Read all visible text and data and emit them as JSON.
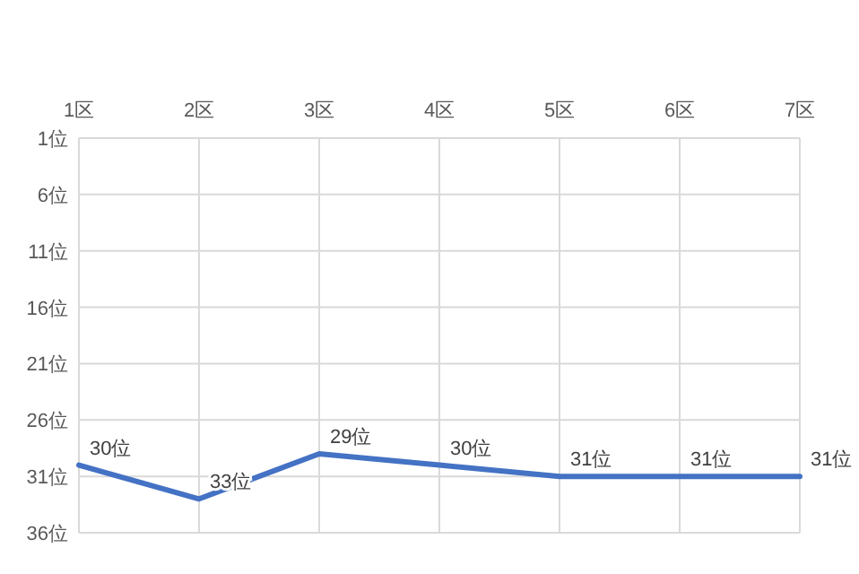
{
  "chart_data": {
    "type": "line",
    "categories": [
      "1区",
      "2区",
      "3区",
      "4区",
      "5区",
      "6区",
      "7区"
    ],
    "series": [
      {
        "color": "#4472c4",
        "values": [
          30,
          33,
          29,
          30,
          31,
          31,
          31
        ],
        "value_labels": [
          "30位",
          "33位",
          "29位",
          "30位",
          "31位",
          "31位",
          "31位"
        ]
      }
    ],
    "ylim": [
      36,
      1
    ],
    "yticks": [
      {
        "value": 1,
        "label": "1位"
      },
      {
        "value": 6,
        "label": "6位"
      },
      {
        "value": 11,
        "label": "11位"
      },
      {
        "value": 16,
        "label": "16位"
      },
      {
        "value": 21,
        "label": "21位"
      },
      {
        "value": 26,
        "label": "26位"
      },
      {
        "value": 31,
        "label": "31位"
      },
      {
        "value": 36,
        "label": "36位"
      }
    ],
    "grid": true,
    "marker": "none",
    "line_style": "solid"
  }
}
